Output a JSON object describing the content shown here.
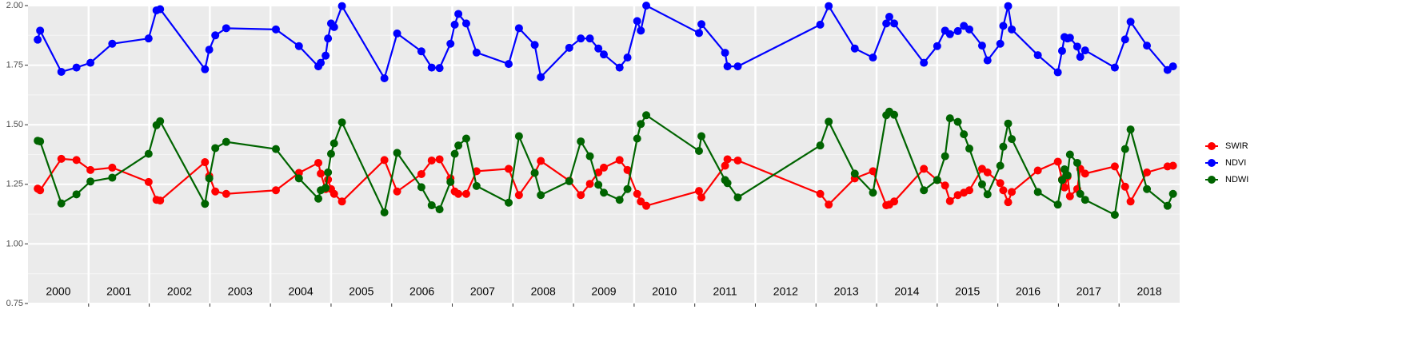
{
  "chart_data": {
    "type": "line",
    "x": [
      2000.16,
      2000.2,
      2000.55,
      2000.8,
      2001.03,
      2001.39,
      2001.99,
      2002.12,
      2002.18,
      2002.92,
      2002.99,
      2003.09,
      2003.27,
      2004.09,
      2004.47,
      2004.79,
      2004.83,
      2004.91,
      2004.95,
      2005.0,
      2005.05,
      2005.18,
      2005.88,
      2006.09,
      2006.49,
      2006.66,
      2006.79,
      2006.97,
      2007.04,
      2007.1,
      2007.23,
      2007.4,
      2007.93,
      2008.1,
      2008.36,
      2008.46,
      2008.93,
      2009.12,
      2009.27,
      2009.41,
      2009.5,
      2009.76,
      2009.89,
      2010.05,
      2010.11,
      2010.2,
      2011.07,
      2011.11,
      2011.5,
      2011.54,
      2011.71,
      2013.07,
      2013.21,
      2013.64,
      2013.94,
      2014.16,
      2014.21,
      2014.29,
      2014.78,
      2015.0,
      2015.13,
      2015.21,
      2015.34,
      2015.44,
      2015.53,
      2015.74,
      2015.83,
      2016.04,
      2016.09,
      2016.17,
      2016.23,
      2016.66,
      2016.99,
      2017.06,
      2017.1,
      2017.15,
      2017.19,
      2017.31,
      2017.36,
      2017.44,
      2017.93,
      2018.1,
      2018.19,
      2018.46,
      2018.8,
      2018.89
    ],
    "series": [
      {
        "name": "SWIR",
        "color": "#ff0000",
        "values": [
          1.232,
          1.225,
          1.357,
          1.352,
          1.31,
          1.32,
          1.26,
          1.185,
          1.182,
          1.343,
          1.285,
          1.22,
          1.21,
          1.225,
          1.298,
          1.34,
          1.295,
          1.23,
          1.27,
          1.23,
          1.21,
          1.178,
          1.352,
          1.22,
          1.293,
          1.35,
          1.355,
          1.275,
          1.22,
          1.21,
          1.21,
          1.305,
          1.315,
          1.205,
          1.298,
          1.348,
          1.265,
          1.205,
          1.252,
          1.3,
          1.32,
          1.352,
          1.31,
          1.21,
          1.178,
          1.16,
          1.222,
          1.195,
          1.328,
          1.355,
          1.35,
          1.21,
          1.165,
          1.275,
          1.305,
          1.162,
          1.165,
          1.178,
          1.315,
          1.268,
          1.245,
          1.18,
          1.205,
          1.215,
          1.225,
          1.315,
          1.3,
          1.255,
          1.225,
          1.175,
          1.218,
          1.308,
          1.345,
          1.27,
          1.237,
          1.282,
          1.2,
          1.23,
          1.315,
          1.295,
          1.325,
          1.24,
          1.178,
          1.3,
          1.325,
          1.328
        ]
      },
      {
        "name": "NDVI",
        "color": "#0000ff",
        "values": [
          1.857,
          1.895,
          1.722,
          1.74,
          1.76,
          1.84,
          1.862,
          1.98,
          1.985,
          1.733,
          1.815,
          1.875,
          1.905,
          1.9,
          1.83,
          1.745,
          1.76,
          1.79,
          1.862,
          1.925,
          1.91,
          1.998,
          1.695,
          1.883,
          1.808,
          1.74,
          1.738,
          1.84,
          1.92,
          1.965,
          1.925,
          1.803,
          1.755,
          1.905,
          1.835,
          1.7,
          1.823,
          1.862,
          1.862,
          1.82,
          1.795,
          1.74,
          1.782,
          1.935,
          1.895,
          2.0,
          1.885,
          1.922,
          1.802,
          1.745,
          1.745,
          1.92,
          1.998,
          1.82,
          1.782,
          1.925,
          1.953,
          1.925,
          1.76,
          1.83,
          1.895,
          1.88,
          1.893,
          1.915,
          1.9,
          1.832,
          1.77,
          1.84,
          1.915,
          1.998,
          1.9,
          1.792,
          1.72,
          1.81,
          1.868,
          1.862,
          1.865,
          1.828,
          1.785,
          1.812,
          1.74,
          1.858,
          1.932,
          1.832,
          1.73,
          1.745
        ]
      },
      {
        "name": "NDWI",
        "color": "#006400",
        "values": [
          1.433,
          1.43,
          1.17,
          1.208,
          1.262,
          1.278,
          1.378,
          1.498,
          1.515,
          1.168,
          1.275,
          1.402,
          1.428,
          1.398,
          1.275,
          1.19,
          1.225,
          1.235,
          1.3,
          1.378,
          1.422,
          1.51,
          1.132,
          1.382,
          1.238,
          1.162,
          1.145,
          1.26,
          1.378,
          1.413,
          1.442,
          1.243,
          1.173,
          1.452,
          1.298,
          1.205,
          1.263,
          1.43,
          1.368,
          1.248,
          1.215,
          1.185,
          1.23,
          1.442,
          1.503,
          1.54,
          1.39,
          1.452,
          1.268,
          1.255,
          1.195,
          1.413,
          1.513,
          1.295,
          1.215,
          1.54,
          1.555,
          1.542,
          1.225,
          1.268,
          1.368,
          1.527,
          1.512,
          1.46,
          1.4,
          1.25,
          1.208,
          1.328,
          1.408,
          1.505,
          1.44,
          1.218,
          1.165,
          1.268,
          1.313,
          1.288,
          1.375,
          1.34,
          1.21,
          1.185,
          1.122,
          1.398,
          1.48,
          1.23,
          1.16,
          1.21
        ]
      }
    ],
    "xlim": [
      2000,
      2019
    ],
    "xticks": [
      2001,
      2002,
      2003,
      2004,
      2005,
      2006,
      2007,
      2008,
      2009,
      2010,
      2011,
      2012,
      2013,
      2014,
      2015,
      2016,
      2017,
      2018
    ],
    "year_labels": [
      2000,
      2001,
      2002,
      2003,
      2004,
      2005,
      2006,
      2007,
      2008,
      2009,
      2010,
      2011,
      2012,
      2013,
      2014,
      2015,
      2016,
      2017,
      2018
    ],
    "ylim": [
      0.75,
      2.0
    ],
    "yticks": [
      {
        "value": 0.75,
        "label": "0.75"
      },
      {
        "value": 1.0,
        "label": "1.00"
      },
      {
        "value": 1.25,
        "label": "1.25"
      },
      {
        "value": 1.5,
        "label": "1.50"
      },
      {
        "value": 1.75,
        "label": "1.75"
      },
      {
        "value": 2.0,
        "label": "2.00"
      }
    ],
    "grid": true,
    "legend": "right"
  }
}
